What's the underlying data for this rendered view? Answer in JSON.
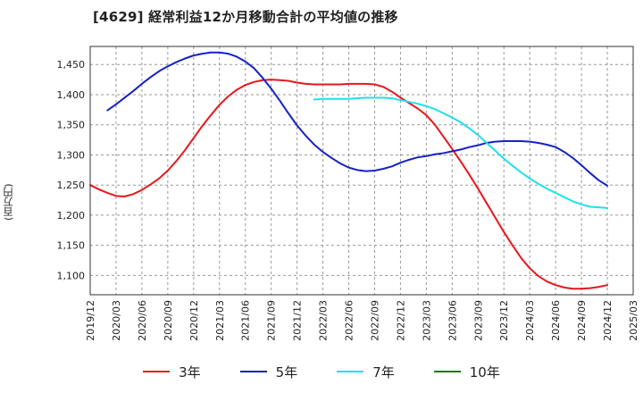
{
  "title": "[4629]  経常利益12か月移動合計の平均値の推移",
  "y_unit_label": "(百万円)",
  "chart_data": {
    "type": "line",
    "title": "[4629]  経常利益12か月移動合計の平均値の推移",
    "xlabel": "",
    "ylabel": "(百万円)",
    "x_tick_labels": [
      "2019/12",
      "2020/03",
      "2020/06",
      "2020/09",
      "2020/12",
      "2021/03",
      "2021/06",
      "2021/09",
      "2021/12",
      "2022/03",
      "2022/06",
      "2022/09",
      "2022/12",
      "2023/03",
      "2023/06",
      "2023/09",
      "2023/12",
      "2024/03",
      "2024/06",
      "2024/09",
      "2024/12",
      "2025/03"
    ],
    "y_ticks": [
      1100,
      1150,
      1200,
      1250,
      1300,
      1350,
      1400,
      1450
    ],
    "y_tick_labels": [
      "1,100",
      "1,150",
      "1,200",
      "1,250",
      "1,300",
      "1,350",
      "1,400",
      "1,450"
    ],
    "ylim": [
      1068,
      1480
    ],
    "xlim": [
      "2019/12",
      "2025/03"
    ],
    "grid": true,
    "legend_position": "bottom",
    "series": [
      {
        "name": "3年",
        "color": "#e8171b",
        "points": [
          [
            "2019/12",
            1250
          ],
          [
            "2020/01",
            1243
          ],
          [
            "2020/02",
            1237
          ],
          [
            "2020/03",
            1232
          ],
          [
            "2020/04",
            1231
          ],
          [
            "2020/05",
            1235
          ],
          [
            "2020/06",
            1242
          ],
          [
            "2020/07",
            1251
          ],
          [
            "2020/08",
            1261
          ],
          [
            "2020/09",
            1274
          ],
          [
            "2020/10",
            1290
          ],
          [
            "2020/11",
            1308
          ],
          [
            "2020/12",
            1328
          ],
          [
            "2021/01",
            1348
          ],
          [
            "2021/02",
            1366
          ],
          [
            "2021/03",
            1383
          ],
          [
            "2021/04",
            1397
          ],
          [
            "2021/05",
            1408
          ],
          [
            "2021/06",
            1416
          ],
          [
            "2021/07",
            1421
          ],
          [
            "2021/08",
            1424
          ],
          [
            "2021/09",
            1425
          ],
          [
            "2021/10",
            1424
          ],
          [
            "2021/11",
            1423
          ],
          [
            "2021/12",
            1420
          ],
          [
            "2022/01",
            1418
          ],
          [
            "2022/02",
            1417
          ],
          [
            "2022/03",
            1417
          ],
          [
            "2022/04",
            1417
          ],
          [
            "2022/05",
            1417
          ],
          [
            "2022/06",
            1418
          ],
          [
            "2022/07",
            1418
          ],
          [
            "2022/08",
            1418
          ],
          [
            "2022/09",
            1417
          ],
          [
            "2022/10",
            1413
          ],
          [
            "2022/11",
            1405
          ],
          [
            "2022/12",
            1395
          ],
          [
            "2023/01",
            1386
          ],
          [
            "2023/02",
            1377
          ],
          [
            "2023/03",
            1366
          ],
          [
            "2023/04",
            1350
          ],
          [
            "2023/05",
            1330
          ],
          [
            "2023/06",
            1310
          ],
          [
            "2023/07",
            1289
          ],
          [
            "2023/08",
            1267
          ],
          [
            "2023/09",
            1244
          ],
          [
            "2023/10",
            1220
          ],
          [
            "2023/11",
            1196
          ],
          [
            "2023/12",
            1172
          ],
          [
            "2024/01",
            1150
          ],
          [
            "2024/02",
            1129
          ],
          [
            "2024/03",
            1112
          ],
          [
            "2024/04",
            1099
          ],
          [
            "2024/05",
            1090
          ],
          [
            "2024/06",
            1084
          ],
          [
            "2024/07",
            1080
          ],
          [
            "2024/08",
            1078
          ],
          [
            "2024/09",
            1078
          ],
          [
            "2024/10",
            1079
          ],
          [
            "2024/11",
            1081
          ],
          [
            "2024/12",
            1084
          ]
        ]
      },
      {
        "name": "5年",
        "color": "#1521c8",
        "points": [
          [
            "2020/02",
            1374
          ],
          [
            "2020/03",
            1384
          ],
          [
            "2020/04",
            1395
          ],
          [
            "2020/05",
            1406
          ],
          [
            "2020/06",
            1418
          ],
          [
            "2020/07",
            1429
          ],
          [
            "2020/08",
            1439
          ],
          [
            "2020/09",
            1447
          ],
          [
            "2020/10",
            1454
          ],
          [
            "2020/11",
            1460
          ],
          [
            "2020/12",
            1465
          ],
          [
            "2021/01",
            1468
          ],
          [
            "2021/02",
            1470
          ],
          [
            "2021/03",
            1470
          ],
          [
            "2021/04",
            1468
          ],
          [
            "2021/05",
            1463
          ],
          [
            "2021/06",
            1455
          ],
          [
            "2021/07",
            1444
          ],
          [
            "2021/08",
            1428
          ],
          [
            "2021/09",
            1410
          ],
          [
            "2021/10",
            1390
          ],
          [
            "2021/11",
            1369
          ],
          [
            "2021/12",
            1349
          ],
          [
            "2022/01",
            1332
          ],
          [
            "2022/02",
            1317
          ],
          [
            "2022/03",
            1305
          ],
          [
            "2022/04",
            1295
          ],
          [
            "2022/05",
            1286
          ],
          [
            "2022/06",
            1279
          ],
          [
            "2022/07",
            1275
          ],
          [
            "2022/08",
            1273
          ],
          [
            "2022/09",
            1274
          ],
          [
            "2022/10",
            1277
          ],
          [
            "2022/11",
            1281
          ],
          [
            "2022/12",
            1287
          ],
          [
            "2023/01",
            1292
          ],
          [
            "2023/02",
            1296
          ],
          [
            "2023/03",
            1298
          ],
          [
            "2023/04",
            1301
          ],
          [
            "2023/05",
            1303
          ],
          [
            "2023/06",
            1306
          ],
          [
            "2023/07",
            1309
          ],
          [
            "2023/08",
            1313
          ],
          [
            "2023/09",
            1316
          ],
          [
            "2023/10",
            1320
          ],
          [
            "2023/11",
            1322
          ],
          [
            "2023/12",
            1323
          ],
          [
            "2024/01",
            1323
          ],
          [
            "2024/02",
            1323
          ],
          [
            "2024/03",
            1322
          ],
          [
            "2024/04",
            1320
          ],
          [
            "2024/05",
            1317
          ],
          [
            "2024/06",
            1313
          ],
          [
            "2024/07",
            1305
          ],
          [
            "2024/08",
            1295
          ],
          [
            "2024/09",
            1283
          ],
          [
            "2024/10",
            1270
          ],
          [
            "2024/11",
            1258
          ],
          [
            "2024/12",
            1249
          ]
        ]
      },
      {
        "name": "7年",
        "color": "#1ee0f0",
        "points": [
          [
            "2022/02",
            1392
          ],
          [
            "2022/03",
            1393
          ],
          [
            "2022/04",
            1393
          ],
          [
            "2022/05",
            1393
          ],
          [
            "2022/06",
            1393
          ],
          [
            "2022/07",
            1394
          ],
          [
            "2022/08",
            1395
          ],
          [
            "2022/09",
            1395
          ],
          [
            "2022/10",
            1395
          ],
          [
            "2022/11",
            1394
          ],
          [
            "2022/12",
            1391
          ],
          [
            "2023/01",
            1388
          ],
          [
            "2023/02",
            1385
          ],
          [
            "2023/03",
            1381
          ],
          [
            "2023/04",
            1376
          ],
          [
            "2023/05",
            1369
          ],
          [
            "2023/06",
            1362
          ],
          [
            "2023/07",
            1354
          ],
          [
            "2023/08",
            1344
          ],
          [
            "2023/09",
            1333
          ],
          [
            "2023/10",
            1320
          ],
          [
            "2023/11",
            1307
          ],
          [
            "2023/12",
            1294
          ],
          [
            "2024/01",
            1282
          ],
          [
            "2024/02",
            1271
          ],
          [
            "2024/03",
            1261
          ],
          [
            "2024/04",
            1252
          ],
          [
            "2024/05",
            1244
          ],
          [
            "2024/06",
            1237
          ],
          [
            "2024/07",
            1230
          ],
          [
            "2024/08",
            1223
          ],
          [
            "2024/09",
            1218
          ],
          [
            "2024/10",
            1214
          ],
          [
            "2024/11",
            1213
          ],
          [
            "2024/12",
            1212
          ]
        ]
      },
      {
        "name": "10年",
        "color": "#1a7a1a",
        "points": []
      }
    ]
  }
}
